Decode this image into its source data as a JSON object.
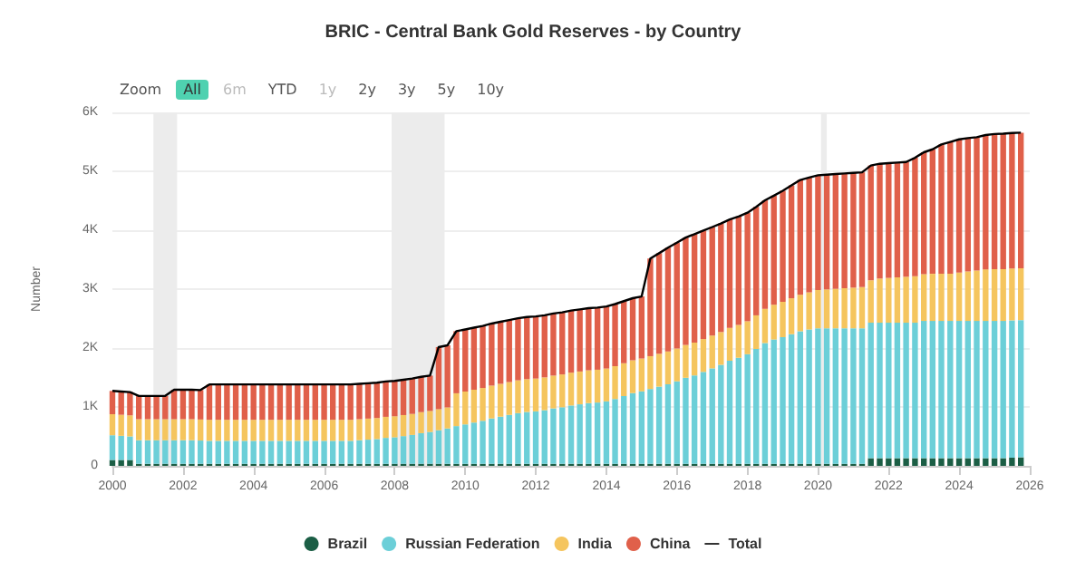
{
  "chart_data": {
    "type": "bar",
    "stacked": true,
    "title": "BRIC - Central Bank Gold Reserves - by Country",
    "ylabel": "Number",
    "annotations": [
      "Zoom",
      "All",
      "6m",
      "YTD",
      "1y",
      "2y",
      "3y",
      "5y",
      "10y"
    ],
    "x": [
      "2000-01",
      "2000-04",
      "2000-07",
      "2000-10",
      "2001-01",
      "2001-04",
      "2001-07",
      "2001-10",
      "2002-01",
      "2002-04",
      "2002-07",
      "2002-10",
      "2003-01",
      "2003-04",
      "2003-07",
      "2003-10",
      "2004-01",
      "2004-04",
      "2004-07",
      "2004-10",
      "2005-01",
      "2005-04",
      "2005-07",
      "2005-10",
      "2006-01",
      "2006-04",
      "2006-07",
      "2006-10",
      "2007-01",
      "2007-04",
      "2007-07",
      "2007-10",
      "2008-01",
      "2008-04",
      "2008-07",
      "2008-10",
      "2009-01",
      "2009-04",
      "2009-07",
      "2009-10",
      "2010-01",
      "2010-04",
      "2010-07",
      "2010-10",
      "2011-01",
      "2011-04",
      "2011-07",
      "2011-10",
      "2012-01",
      "2012-04",
      "2012-07",
      "2012-10",
      "2013-01",
      "2013-04",
      "2013-07",
      "2013-10",
      "2014-01",
      "2014-04",
      "2014-07",
      "2014-10",
      "2015-01",
      "2015-04",
      "2015-07",
      "2015-10",
      "2016-01",
      "2016-04",
      "2016-07",
      "2016-10",
      "2017-01",
      "2017-04",
      "2017-07",
      "2017-10",
      "2018-01",
      "2018-04",
      "2018-07",
      "2018-10",
      "2019-01",
      "2019-04",
      "2019-07",
      "2019-10",
      "2020-01",
      "2020-04",
      "2020-07",
      "2020-10",
      "2021-01",
      "2021-04",
      "2021-07",
      "2021-10",
      "2022-01",
      "2022-04",
      "2022-07",
      "2022-10",
      "2023-01",
      "2023-04",
      "2023-07",
      "2023-10",
      "2024-01",
      "2024-04",
      "2024-07",
      "2024-10",
      "2025-01",
      "2025-04",
      "2025-07",
      "2025-10"
    ],
    "series": [
      {
        "name": "Brazil",
        "color": "#1b5e45",
        "values": [
          100,
          100,
          100,
          35,
          35,
          35,
          35,
          35,
          35,
          35,
          35,
          35,
          35,
          35,
          35,
          35,
          35,
          35,
          35,
          35,
          35,
          35,
          35,
          35,
          35,
          35,
          35,
          35,
          35,
          35,
          35,
          35,
          35,
          35,
          35,
          35,
          35,
          35,
          35,
          35,
          35,
          35,
          35,
          35,
          35,
          35,
          35,
          35,
          35,
          35,
          35,
          35,
          35,
          35,
          35,
          35,
          35,
          35,
          35,
          35,
          35,
          35,
          35,
          35,
          35,
          35,
          35,
          35,
          35,
          35,
          35,
          35,
          35,
          35,
          35,
          35,
          35,
          35,
          35,
          35,
          35,
          35,
          35,
          35,
          35,
          35,
          130,
          130,
          130,
          130,
          130,
          130,
          130,
          130,
          130,
          130,
          130,
          130,
          130,
          130,
          130,
          130,
          140,
          145
        ]
      },
      {
        "name": "Russian Federation",
        "color": "#6ccfd8",
        "values": [
          420,
          410,
          400,
          400,
          400,
          400,
          400,
          400,
          400,
          400,
          395,
          390,
          390,
          390,
          390,
          390,
          390,
          390,
          390,
          390,
          390,
          390,
          390,
          390,
          390,
          390,
          390,
          390,
          400,
          410,
          420,
          440,
          450,
          470,
          490,
          520,
          540,
          570,
          600,
          640,
          670,
          700,
          730,
          770,
          800,
          830,
          860,
          880,
          890,
          910,
          940,
          960,
          990,
          1010,
          1030,
          1040,
          1060,
          1100,
          1150,
          1200,
          1230,
          1270,
          1310,
          1350,
          1400,
          1460,
          1500,
          1560,
          1620,
          1680,
          1750,
          1800,
          1860,
          1950,
          2050,
          2110,
          2150,
          2200,
          2250,
          2280,
          2300,
          2300,
          2300,
          2300,
          2300,
          2300,
          2300,
          2300,
          2300,
          2300,
          2300,
          2300,
          2330,
          2330,
          2330,
          2330,
          2330,
          2330,
          2330,
          2330,
          2330,
          2330,
          2330,
          2330
        ]
      },
      {
        "name": "India",
        "color": "#f5c55e",
        "values": [
          357,
          357,
          357,
          357,
          357,
          357,
          357,
          357,
          357,
          357,
          357,
          357,
          357,
          357,
          357,
          357,
          357,
          357,
          357,
          357,
          357,
          357,
          357,
          357,
          357,
          357,
          357,
          357,
          357,
          357,
          357,
          357,
          357,
          357,
          357,
          357,
          357,
          357,
          357,
          557,
          557,
          557,
          557,
          557,
          557,
          557,
          557,
          557,
          557,
          557,
          557,
          557,
          557,
          557,
          557,
          557,
          557,
          557,
          557,
          557,
          557,
          557,
          557,
          557,
          557,
          557,
          557,
          557,
          557,
          557,
          557,
          557,
          560,
          570,
          580,
          590,
          600,
          610,
          620,
          630,
          650,
          660,
          670,
          680,
          690,
          700,
          720,
          750,
          760,
          770,
          780,
          790,
          795,
          800,
          803,
          803,
          820,
          840,
          855,
          876,
          880,
          880,
          880,
          880
        ]
      },
      {
        "name": "China",
        "color": "#e0604a",
        "values": [
          395,
          395,
          395,
          395,
          395,
          395,
          395,
          500,
          500,
          500,
          500,
          600,
          600,
          600,
          600,
          600,
          600,
          600,
          600,
          600,
          600,
          600,
          600,
          600,
          600,
          600,
          600,
          600,
          600,
          600,
          600,
          600,
          600,
          600,
          600,
          600,
          600,
          1054,
          1054,
          1054,
          1054,
          1054,
          1054,
          1054,
          1054,
          1054,
          1054,
          1054,
          1054,
          1054,
          1054,
          1054,
          1054,
          1054,
          1054,
          1054,
          1054,
          1054,
          1054,
          1054,
          1054,
          1658,
          1708,
          1762,
          1797,
          1823,
          1842,
          1842,
          1842,
          1842,
          1842,
          1842,
          1842,
          1842,
          1842,
          1852,
          1885,
          1916,
          1948,
          1948,
          1948,
          1948,
          1948,
          1948,
          1948,
          1948,
          1948,
          1948,
          1948,
          1948,
          1948,
          2010,
          2068,
          2113,
          2192,
          2235,
          2262,
          2264,
          2264,
          2280,
          2292,
          2298,
          2300,
          2300
        ]
      },
      {
        "name": "Total",
        "type": "line",
        "color": "#000000",
        "values": [
          1272,
          1262,
          1252,
          1187,
          1187,
          1187,
          1187,
          1292,
          1292,
          1292,
          1287,
          1382,
          1382,
          1382,
          1382,
          1382,
          1382,
          1382,
          1382,
          1382,
          1382,
          1382,
          1382,
          1382,
          1382,
          1382,
          1382,
          1382,
          1392,
          1402,
          1412,
          1432,
          1442,
          1462,
          1482,
          1512,
          1532,
          2016,
          2046,
          2286,
          2316,
          2346,
          2376,
          2416,
          2446,
          2476,
          2506,
          2526,
          2536,
          2556,
          2586,
          2606,
          2636,
          2656,
          2676,
          2686,
          2706,
          2746,
          2796,
          2846,
          2876,
          3520,
          3610,
          3704,
          3789,
          3875,
          3934,
          3994,
          4054,
          4114,
          4184,
          4234,
          4297,
          4397,
          4507,
          4587,
          4670,
          4761,
          4853,
          4893,
          4933,
          4943,
          4953,
          4963,
          4973,
          4983,
          5098,
          5128,
          5138,
          5148,
          5158,
          5230,
          5323,
          5373,
          5455,
          5498,
          5542,
          5564,
          5579,
          5616,
          5632,
          5638,
          5650,
          5655
        ]
      }
    ],
    "xlim": [
      "2000-01-01",
      "2026-01-01"
    ],
    "xticks": [
      {
        "value": "2000-01-01",
        "label": "2000"
      },
      {
        "value": "2002-01-01",
        "label": "2002"
      },
      {
        "value": "2004-01-01",
        "label": "2004"
      },
      {
        "value": "2006-01-01",
        "label": "2006"
      },
      {
        "value": "2008-01-01",
        "label": "2008"
      },
      {
        "value": "2010-01-01",
        "label": "2010"
      },
      {
        "value": "2012-01-01",
        "label": "2012"
      },
      {
        "value": "2014-01-01",
        "label": "2014"
      },
      {
        "value": "2016-01-01",
        "label": "2016"
      },
      {
        "value": "2018-01-01",
        "label": "2018"
      },
      {
        "value": "2020-01-01",
        "label": "2020"
      },
      {
        "value": "2022-01-01",
        "label": "2022"
      },
      {
        "value": "2024-01-01",
        "label": "2024"
      },
      {
        "value": "2026-01-01",
        "label": "2026"
      }
    ],
    "ylim": [
      0,
      6000
    ],
    "yticks": [
      0,
      {
        "value": 1000,
        "label": "1K"
      },
      {
        "value": 2000,
        "label": "2K"
      },
      {
        "value": 3000,
        "label": "3K"
      },
      {
        "value": 4000,
        "label": "4K"
      },
      {
        "value": 5000,
        "label": "5K"
      },
      {
        "value": 6000,
        "label": "6K"
      }
    ],
    "bands": [
      {
        "axis": "x",
        "from": "2001-03",
        "to": "2001-11",
        "color": "#ececec"
      },
      {
        "axis": "x",
        "from": "2007-12",
        "to": "2009-06",
        "color": "#ececec"
      },
      {
        "axis": "x",
        "from": "2020-02",
        "to": "2020-04",
        "color": "#ececec"
      }
    ],
    "grid": "y",
    "legend": "bottom"
  }
}
